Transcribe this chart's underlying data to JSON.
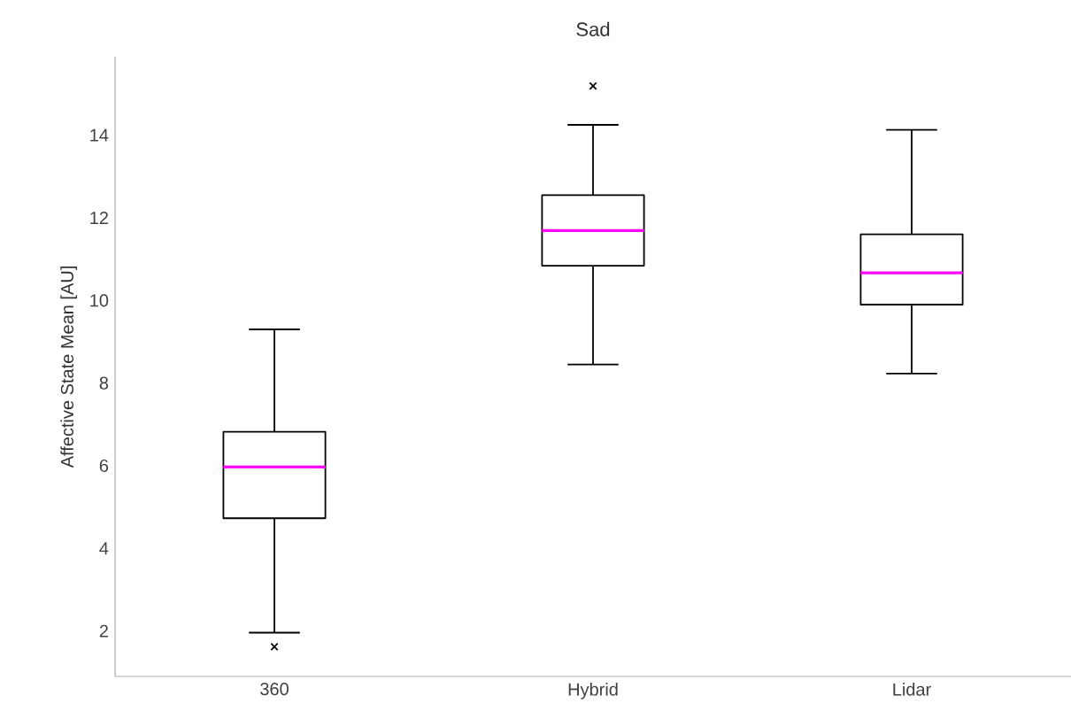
{
  "chart_data": {
    "type": "box",
    "title": "Sad",
    "ylabel": "Affective State Mean [AU]",
    "categories": [
      "360",
      "Hybrid",
      "Lidar"
    ],
    "marker": "cross",
    "boxes": [
      {
        "low": 1.96,
        "q1": 4.73,
        "median": 5.97,
        "q3": 6.82,
        "high": 9.3,
        "outliers": [
          1.62
        ]
      },
      {
        "low": 8.45,
        "q1": 10.84,
        "median": 11.69,
        "q3": 12.55,
        "high": 14.25,
        "outliers": [
          15.19
        ]
      },
      {
        "low": 8.23,
        "q1": 9.9,
        "median": 10.67,
        "q3": 11.6,
        "high": 14.13
      }
    ],
    "ylim": [
      0.9,
      15.9
    ],
    "yticks": [
      2,
      4,
      6,
      8,
      10,
      12,
      14
    ]
  }
}
